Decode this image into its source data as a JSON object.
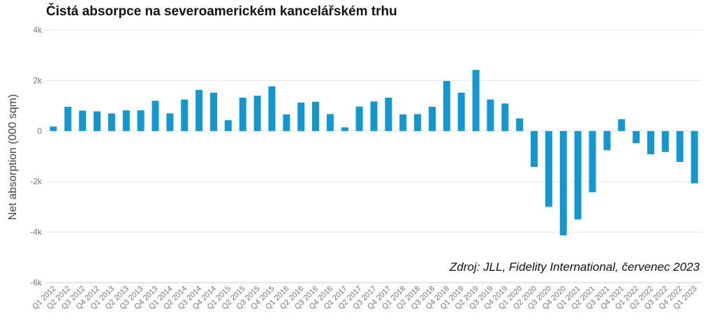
{
  "chart_data": {
    "type": "bar",
    "title": "Čistá absorpce na severoamerickém kancelářském trhu",
    "ylabel": "Net absorption (000 sqm)",
    "xlabel": "",
    "source": "Zdroj: JLL, Fidelity International, červenec 2023",
    "ylim": [
      -6000,
      4000
    ],
    "yticks": [
      {
        "value": 4000,
        "label": "4k"
      },
      {
        "value": 2000,
        "label": "2k"
      },
      {
        "value": 0,
        "label": "0"
      },
      {
        "value": -2000,
        "label": "-2k"
      },
      {
        "value": -4000,
        "label": "-4k"
      },
      {
        "value": -6000,
        "label": "-6k"
      }
    ],
    "grid": true,
    "bar_color": "#1497cf",
    "categories": [
      "Q1 2012",
      "Q2 2012",
      "Q3 2012",
      "Q4 2012",
      "Q1 2013",
      "Q2 2013",
      "Q3 2013",
      "Q4 2013",
      "Q1 2014",
      "Q2 2014",
      "Q3 2014",
      "Q4 2014",
      "Q1 2015",
      "Q2 2015",
      "Q3 2015",
      "Q4 2015",
      "Q1 2016",
      "Q2 2016",
      "Q3 2016",
      "Q4 2016",
      "Q1 2017",
      "Q2 2017",
      "Q3 2017",
      "Q4 2017",
      "Q1 2018",
      "Q2 2018",
      "Q3 2018",
      "Q4 2018",
      "Q1 2019",
      "Q2 2019",
      "Q3 2019",
      "Q4 2019",
      "Q1 2020",
      "Q2 2020",
      "Q3 2020",
      "Q4 2020",
      "Q1 2021",
      "Q2 2021",
      "Q3 2021",
      "Q4 2021",
      "Q1 2022",
      "Q2 2022",
      "Q3 2022",
      "Q4 2022",
      "Q1 2023"
    ],
    "values": [
      180,
      960,
      810,
      780,
      700,
      820,
      820,
      1200,
      700,
      1250,
      1630,
      1520,
      430,
      1320,
      1400,
      1770,
      660,
      1130,
      1160,
      670,
      150,
      970,
      1170,
      1320,
      660,
      670,
      960,
      1980,
      1520,
      2420,
      1250,
      1090,
      500,
      -1420,
      -3000,
      -4130,
      -3500,
      -2420,
      -760,
      470,
      -480,
      -920,
      -830,
      -1220,
      -2070
    ]
  }
}
